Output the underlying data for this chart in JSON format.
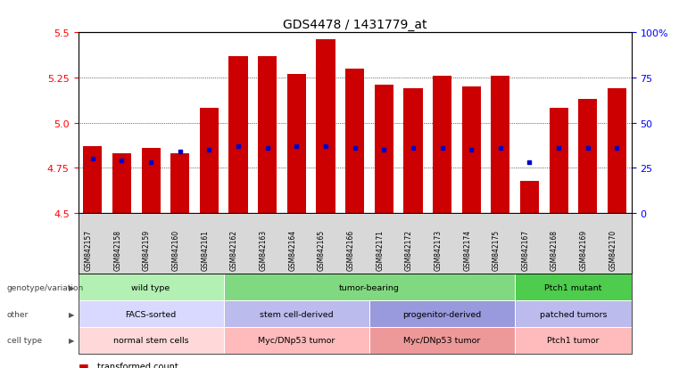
{
  "title": "GDS4478 / 1431779_at",
  "samples": [
    "GSM842157",
    "GSM842158",
    "GSM842159",
    "GSM842160",
    "GSM842161",
    "GSM842162",
    "GSM842163",
    "GSM842164",
    "GSM842165",
    "GSM842166",
    "GSM842171",
    "GSM842172",
    "GSM842173",
    "GSM842174",
    "GSM842175",
    "GSM842167",
    "GSM842168",
    "GSM842169",
    "GSM842170"
  ],
  "bar_values": [
    4.87,
    4.83,
    4.86,
    4.83,
    5.08,
    5.37,
    5.37,
    5.27,
    5.46,
    5.3,
    5.21,
    5.19,
    5.26,
    5.2,
    5.26,
    4.68,
    5.08,
    5.13,
    5.19
  ],
  "blue_dot_values": [
    4.8,
    4.79,
    4.78,
    4.84,
    4.85,
    4.87,
    4.86,
    4.87,
    4.87,
    4.86,
    4.85,
    4.86,
    4.86,
    4.85,
    4.86,
    4.78,
    4.86,
    4.86,
    4.86
  ],
  "ylim_left": [
    4.5,
    5.5
  ],
  "yticks_left": [
    4.5,
    4.75,
    5.0,
    5.25,
    5.5
  ],
  "yticks_right": [
    0,
    25,
    50,
    75,
    100
  ],
  "ytick_labels_right": [
    "0",
    "25",
    "50",
    "75",
    "100%"
  ],
  "bar_color": "#cc0000",
  "dot_color": "#0000cc",
  "annotation_rows": [
    {
      "label": "genotype/variation",
      "groups": [
        {
          "text": "wild type",
          "start": 0,
          "end": 4,
          "color": "#b3f0b3"
        },
        {
          "text": "tumor-bearing",
          "start": 5,
          "end": 14,
          "color": "#80d980"
        },
        {
          "text": "Ptch1 mutant",
          "start": 15,
          "end": 18,
          "color": "#4dcc4d"
        }
      ]
    },
    {
      "label": "other",
      "groups": [
        {
          "text": "FACS-sorted",
          "start": 0,
          "end": 4,
          "color": "#d9d9ff"
        },
        {
          "text": "stem cell-derived",
          "start": 5,
          "end": 9,
          "color": "#bbbbee"
        },
        {
          "text": "progenitor-derived",
          "start": 10,
          "end": 14,
          "color": "#9999dd"
        },
        {
          "text": "patched tumors",
          "start": 15,
          "end": 18,
          "color": "#bbbbee"
        }
      ]
    },
    {
      "label": "cell type",
      "groups": [
        {
          "text": "normal stem cells",
          "start": 0,
          "end": 4,
          "color": "#ffd9d9"
        },
        {
          "text": "Myc/DNp53 tumor",
          "start": 5,
          "end": 9,
          "color": "#ffbbbb"
        },
        {
          "text": "Myc/DNp53 tumor",
          "start": 10,
          "end": 14,
          "color": "#ee9999"
        },
        {
          "text": "Ptch1 tumor",
          "start": 15,
          "end": 18,
          "color": "#ffbbbb"
        }
      ]
    }
  ]
}
